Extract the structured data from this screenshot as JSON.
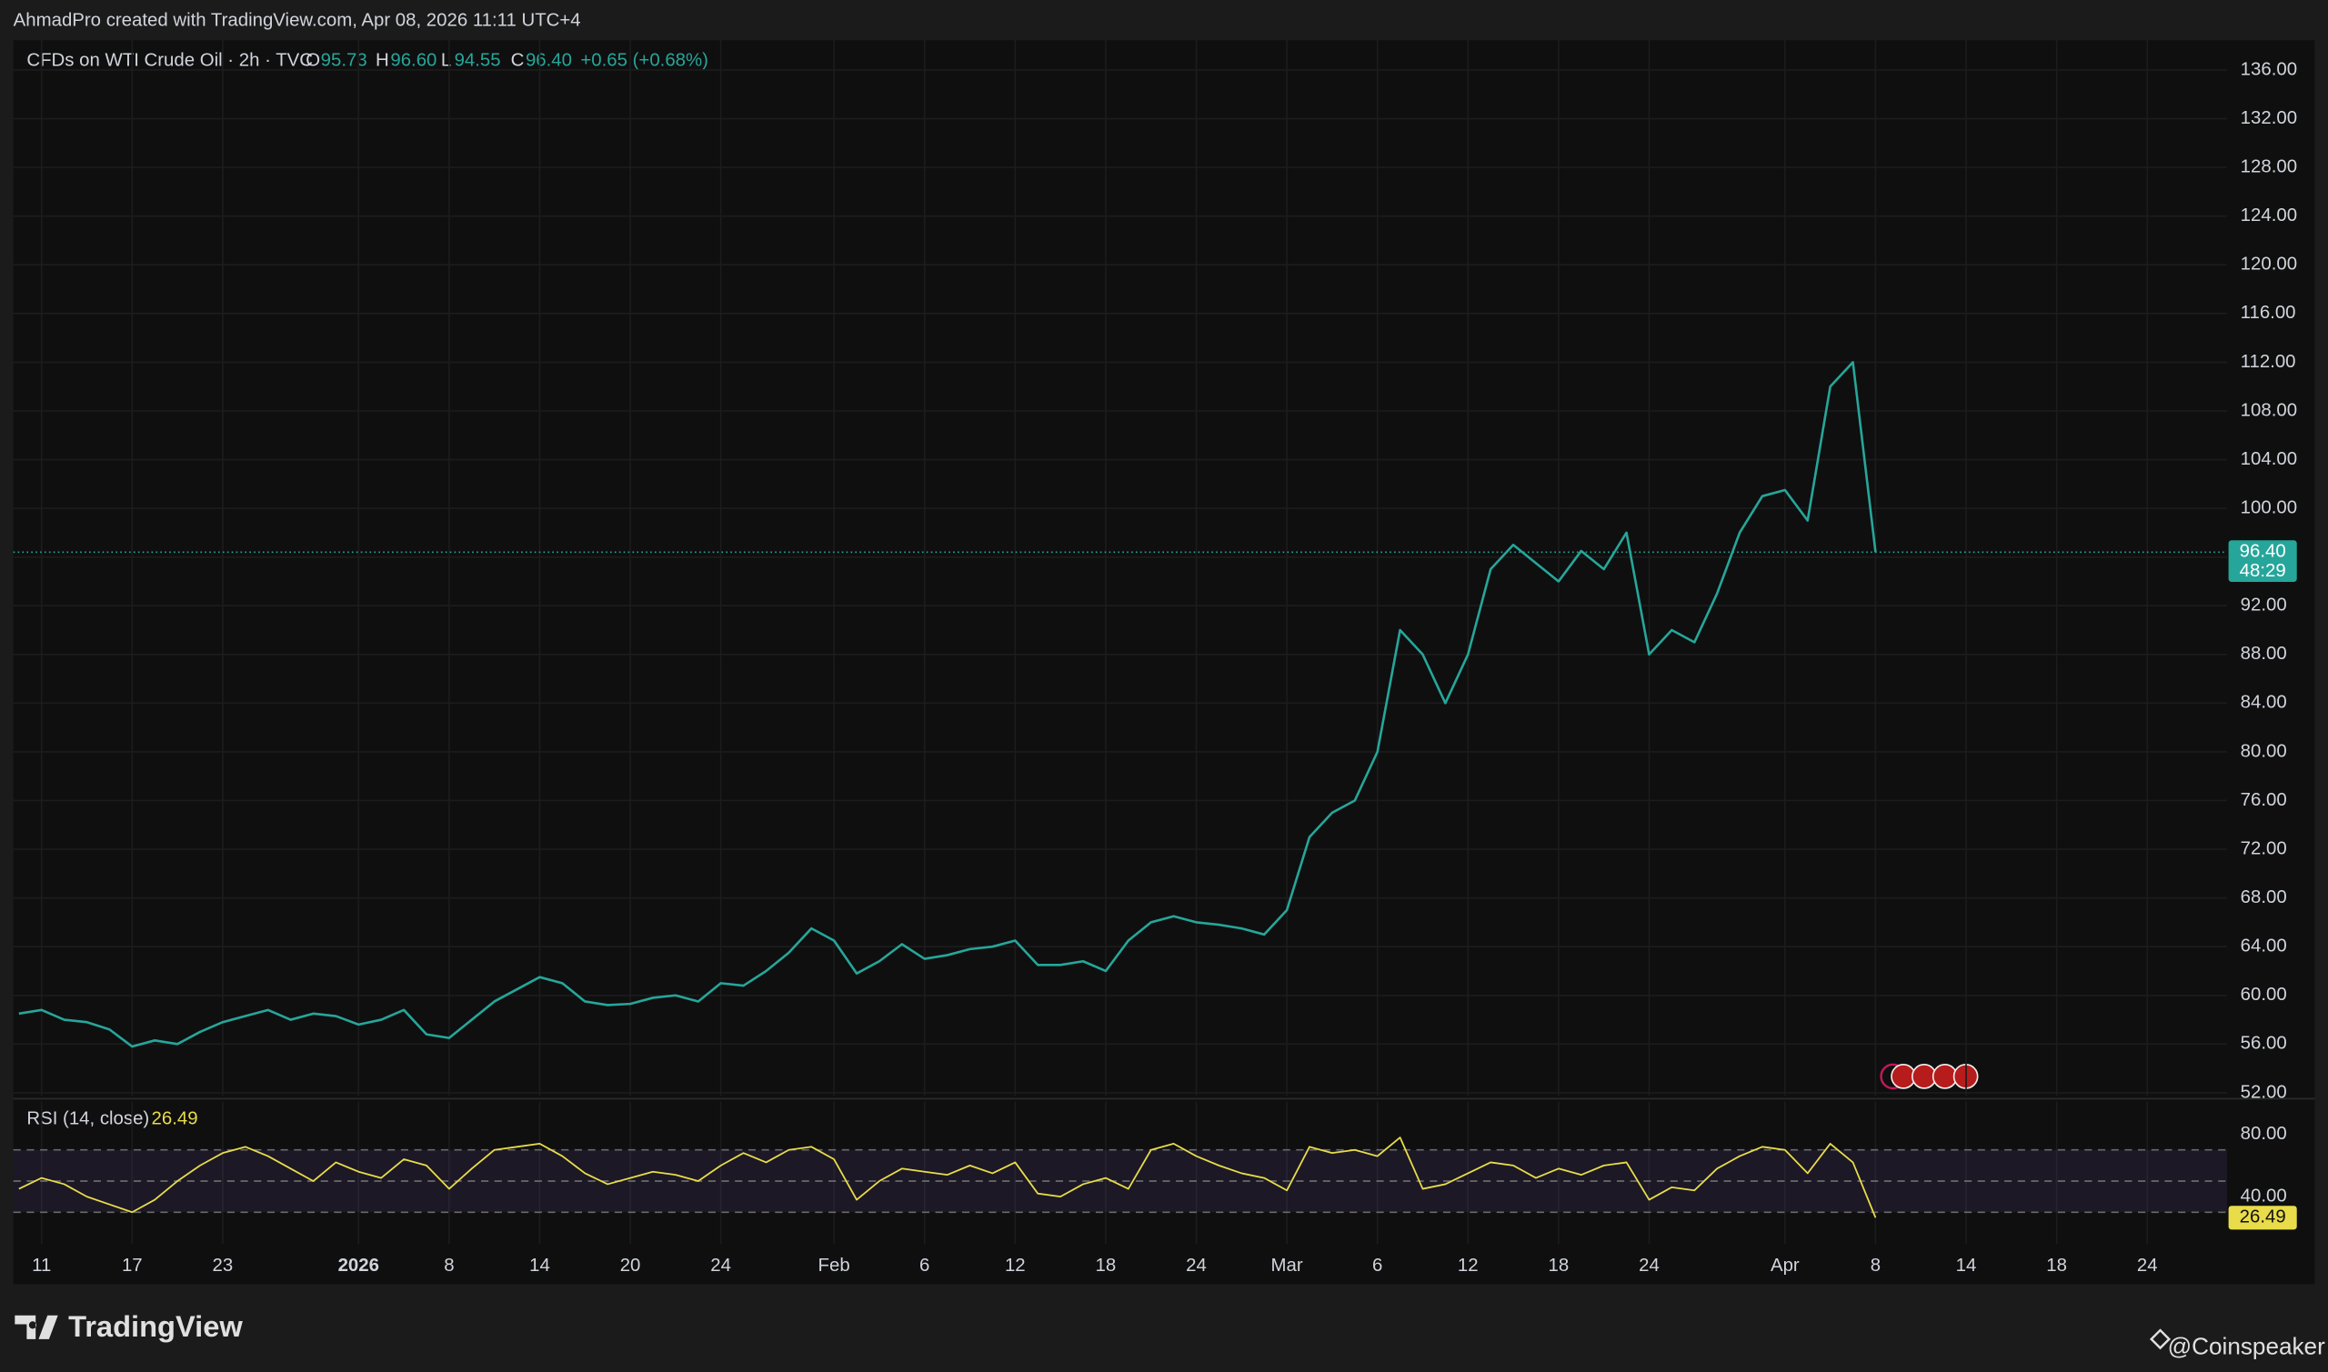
{
  "header": {
    "caption": "AhmadPro created with TradingView.com, Apr 08, 2026 11:11 UTC+4"
  },
  "footer": {
    "brand": "TradingView",
    "credit": "@Coinspeaker"
  },
  "chart_data": [
    {
      "type": "line",
      "legend": {
        "name": "CFDs on WTI Crude Oil · 2h · TVC",
        "o": "O",
        "open": "95.73",
        "h": "H",
        "high": "96.60",
        "l": "L",
        "low": "94.55",
        "c": "C",
        "close": "96.40",
        "change": "+0.65 (+0.68%)"
      },
      "price_label": "96.40",
      "countdown": "48:29",
      "color": "#26a69a",
      "grid": true,
      "ylim": [
        51.76,
        138.44
      ],
      "yticks": [
        {
          "value": 52,
          "label": "52.00"
        },
        {
          "value": 56,
          "label": "56.00"
        },
        {
          "value": 60,
          "label": "60.00"
        },
        {
          "value": 64,
          "label": "64.00"
        },
        {
          "value": 68,
          "label": "68.00"
        },
        {
          "value": 72,
          "label": "72.00"
        },
        {
          "value": 76,
          "label": "76.00"
        },
        {
          "value": 80,
          "label": "80.00"
        },
        {
          "value": 84,
          "label": "84.00"
        },
        {
          "value": 88,
          "label": "88.00"
        },
        {
          "value": 92,
          "label": "92.00"
        },
        {
          "value": 96,
          "label": "96.00"
        },
        {
          "value": 100,
          "label": "100.00"
        },
        {
          "value": 104,
          "label": "104.00"
        },
        {
          "value": 108,
          "label": "108.00"
        },
        {
          "value": 112,
          "label": "112.00"
        },
        {
          "value": 116,
          "label": "116.00"
        },
        {
          "value": 120,
          "label": "120.00"
        },
        {
          "value": 124,
          "label": "124.00"
        },
        {
          "value": 128,
          "label": "128.00"
        },
        {
          "value": 132,
          "label": "132.00"
        },
        {
          "value": 136,
          "label": "136.00"
        }
      ],
      "categories": [
        null,
        "11",
        null,
        null,
        null,
        "17",
        null,
        null,
        null,
        "23",
        null,
        null,
        null,
        null,
        null,
        "2026",
        null,
        null,
        null,
        "8",
        null,
        null,
        null,
        "14",
        null,
        null,
        null,
        "20",
        null,
        null,
        null,
        "24",
        null,
        null,
        null,
        null,
        "Feb",
        null,
        null,
        null,
        "6",
        null,
        null,
        null,
        "12",
        null,
        null,
        null,
        "18",
        null,
        null,
        null,
        "24",
        null,
        null,
        null,
        "Mar",
        null,
        null,
        null,
        "6",
        null,
        null,
        null,
        "12",
        null,
        null,
        null,
        "18",
        null,
        null,
        null,
        "24",
        null,
        null,
        null,
        null,
        null,
        "Apr",
        null,
        null,
        null,
        "8",
        null,
        null,
        null,
        "14",
        null,
        null,
        null,
        "18",
        null,
        null,
        null,
        "24",
        null,
        null,
        null
      ],
      "values": [
        58.5,
        58.8,
        58.0,
        57.8,
        57.2,
        55.8,
        56.3,
        56.0,
        57.0,
        57.8,
        58.3,
        58.8,
        58.0,
        58.5,
        58.3,
        57.6,
        58.0,
        58.8,
        56.8,
        56.5,
        58.0,
        59.5,
        60.5,
        61.5,
        61.0,
        59.5,
        59.2,
        59.3,
        59.8,
        60.0,
        59.5,
        61.0,
        60.8,
        62.0,
        63.5,
        65.5,
        64.5,
        61.8,
        62.8,
        64.2,
        63.0,
        63.3,
        63.8,
        64.0,
        64.5,
        62.5,
        62.5,
        62.8,
        62.0,
        64.5,
        66.0,
        66.5,
        66.0,
        65.8,
        65.5,
        65.0,
        67.0,
        73.0,
        75.0,
        76.0,
        80.0,
        90.0,
        88.0,
        84.0,
        88.0,
        95.0,
        97.0,
        95.5,
        94.0,
        96.5,
        95.0,
        98.0,
        88.0,
        90.0,
        89.0,
        93.0,
        98.0,
        101.0,
        101.5,
        99.0,
        110.0,
        112.0,
        96.4,
        null,
        null,
        null,
        null,
        null,
        null,
        null,
        null,
        null,
        null,
        null,
        null,
        null,
        null,
        null
      ]
    },
    {
      "type": "line",
      "title": "RSI (14, close)",
      "value_label": "26.49",
      "color": "#e8dc4a",
      "band_color": "#7e57c2",
      "levels": [
        30,
        50,
        70
      ],
      "ylim": [
        9.5,
        101
      ],
      "yticks": [
        {
          "value": 40,
          "label": "40.00"
        },
        {
          "value": 80,
          "label": "80.00"
        }
      ],
      "values": [
        45,
        52,
        48,
        40,
        35,
        30,
        38,
        50,
        60,
        68,
        72,
        66,
        58,
        50,
        62,
        56,
        52,
        64,
        60,
        45,
        58,
        70,
        72,
        74,
        66,
        55,
        48,
        52,
        56,
        54,
        50,
        60,
        68,
        62,
        70,
        72,
        64,
        38,
        50,
        58,
        56,
        54,
        60,
        55,
        62,
        42,
        40,
        48,
        52,
        45,
        70,
        74,
        66,
        60,
        55,
        52,
        44,
        72,
        68,
        70,
        66,
        78,
        45,
        48,
        55,
        62,
        60,
        52,
        58,
        54,
        60,
        62,
        38,
        46,
        44,
        58,
        66,
        72,
        70,
        55,
        74,
        62,
        26.49,
        null,
        null,
        null,
        null,
        null,
        null,
        null,
        null,
        null,
        null,
        null,
        null,
        null,
        null,
        null
      ]
    }
  ]
}
